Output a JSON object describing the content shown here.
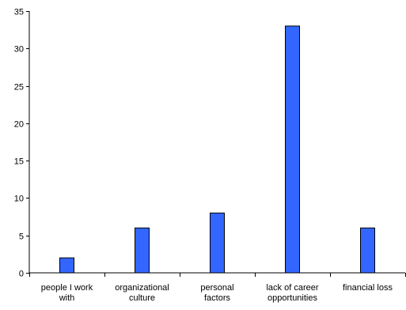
{
  "chart_data": {
    "type": "bar",
    "categories": [
      [
        "people I work",
        "with"
      ],
      [
        "organizational",
        "culture"
      ],
      [
        "personal",
        "factors"
      ],
      [
        "lack of career",
        "opportunities"
      ],
      [
        "financial loss"
      ]
    ],
    "values": [
      2,
      6,
      8,
      33,
      6
    ],
    "yticks": [
      0,
      5,
      10,
      15,
      20,
      25,
      30,
      35
    ],
    "ylim": [
      0,
      35
    ],
    "title": "",
    "xlabel": "",
    "ylabel": "",
    "grid": false,
    "bar_color": "#3366ff",
    "bar_stroke": "#000000"
  }
}
